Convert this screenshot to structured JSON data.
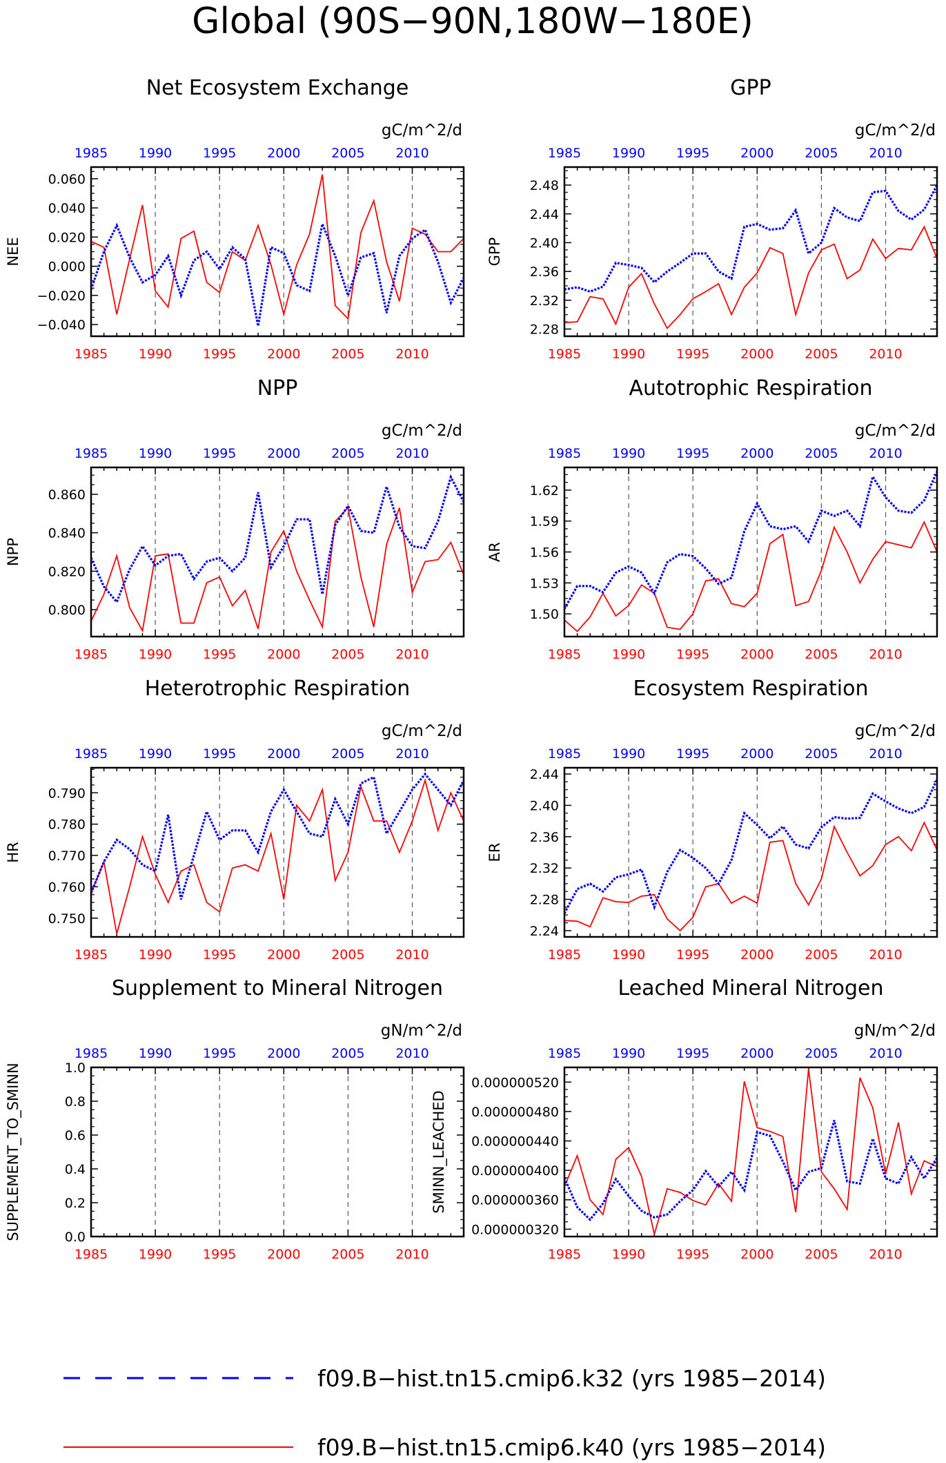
{
  "figure": {
    "title": "Global (90S−90N,180W−180E)",
    "colors": {
      "case_a": "#0000ff",
      "case_b": "#ff0000",
      "axis": "#000000",
      "grid": "#555555"
    }
  },
  "legend": {
    "entries": [
      {
        "label": "f09.B−hist.tn15.cmip6.k32 (yrs 1985−2014)",
        "color": "#0000ff",
        "style": "dashed"
      },
      {
        "label": "f09.B−hist.tn15.cmip6.k40 (yrs 1985−2014)",
        "color": "#ff0000",
        "style": "solid"
      }
    ]
  },
  "chart_data": [
    {
      "type": "line",
      "title": "Net Ecosystem Exchange",
      "ylabel": "NEE",
      "units": "gC/m^2/d",
      "ylim": [
        -0.048,
        0.068
      ],
      "yticks": [
        -0.04,
        -0.02,
        0.0,
        0.02,
        0.04,
        0.06
      ],
      "ytick_labels": [
        "−0.040",
        "−0.020",
        "0.000",
        "0.020",
        "0.040",
        "0.060"
      ],
      "x_bottom_ticks": [
        "1985",
        "1990",
        "1995",
        "2000",
        "2005",
        "2010"
      ],
      "x_top_ticks": [
        "1985",
        "1990",
        "1995",
        "2000",
        "2005",
        "2010"
      ],
      "x_top_color": "#0000ff",
      "x_bottom_color": "#ff0000",
      "years": [
        1985,
        1986,
        1987,
        1988,
        1989,
        1990,
        1991,
        1992,
        1993,
        1994,
        1995,
        1996,
        1997,
        1998,
        1999,
        2000,
        2001,
        2002,
        2003,
        2004,
        2005,
        2006,
        2007,
        2008,
        2009,
        2010,
        2011,
        2012,
        2013,
        2014
      ],
      "series": [
        {
          "color": "#0000ff",
          "style": "dotted",
          "values": [
            -0.016,
            0.01,
            0.028,
            0.006,
            -0.011,
            -0.006,
            0.007,
            -0.02,
            0.004,
            0.01,
            -0.002,
            0.013,
            0.005,
            -0.041,
            0.013,
            0.009,
            -0.013,
            -0.017,
            0.029,
            0.007,
            -0.02,
            0.006,
            0.009,
            -0.032,
            0.007,
            0.019,
            0.025,
            0.003,
            -0.025,
            -0.008
          ]
        },
        {
          "color": "#ff0000",
          "style": "solid",
          "values": [
            0.017,
            0.013,
            -0.033,
            0.005,
            0.042,
            -0.017,
            -0.028,
            0.019,
            0.024,
            -0.011,
            -0.018,
            0.01,
            0.004,
            0.028,
            0.001,
            -0.033,
            0.001,
            0.022,
            0.063,
            -0.027,
            -0.036,
            0.023,
            0.045,
            0.003,
            -0.024,
            0.026,
            0.022,
            0.01,
            0.01,
            0.019
          ]
        }
      ]
    },
    {
      "type": "line",
      "title": "GPP",
      "ylabel": "GPP",
      "units": "gC/m^2/d",
      "ylim": [
        2.27,
        2.505
      ],
      "yticks": [
        2.28,
        2.32,
        2.36,
        2.4,
        2.44,
        2.48
      ],
      "ytick_labels": [
        "2.28",
        "2.32",
        "2.36",
        "2.40",
        "2.44",
        "2.48"
      ],
      "x_bottom_ticks": [
        "1985",
        "1990",
        "1995",
        "2000",
        "2005",
        "2010"
      ],
      "x_top_ticks": [
        "1985",
        "1990",
        "1995",
        "2000",
        "2005",
        "2010"
      ],
      "x_top_color": "#0000ff",
      "x_bottom_color": "#ff0000",
      "years": [
        1985,
        1986,
        1987,
        1988,
        1989,
        1990,
        1991,
        1992,
        1993,
        1994,
        1995,
        1996,
        1997,
        1998,
        1999,
        2000,
        2001,
        2002,
        2003,
        2004,
        2005,
        2006,
        2007,
        2008,
        2009,
        2010,
        2011,
        2012,
        2013,
        2014
      ],
      "series": [
        {
          "color": "#0000ff",
          "style": "dotted",
          "values": [
            2.335,
            2.338,
            2.332,
            2.339,
            2.372,
            2.369,
            2.365,
            2.345,
            2.36,
            2.372,
            2.385,
            2.385,
            2.36,
            2.35,
            2.422,
            2.426,
            2.418,
            2.42,
            2.445,
            2.385,
            2.4,
            2.448,
            2.435,
            2.43,
            2.47,
            2.472,
            2.444,
            2.432,
            2.446,
            2.48
          ]
        },
        {
          "color": "#ff0000",
          "style": "solid",
          "values": [
            2.289,
            2.29,
            2.325,
            2.322,
            2.287,
            2.338,
            2.357,
            2.315,
            2.281,
            2.3,
            2.322,
            2.332,
            2.343,
            2.3,
            2.338,
            2.358,
            2.393,
            2.385,
            2.3,
            2.358,
            2.39,
            2.398,
            2.35,
            2.362,
            2.405,
            2.378,
            2.392,
            2.39,
            2.422,
            2.378
          ]
        }
      ]
    },
    {
      "type": "line",
      "title": "NPP",
      "ylabel": "NPP",
      "units": "gC/m^2/d",
      "ylim": [
        0.786,
        0.874
      ],
      "yticks": [
        0.8,
        0.82,
        0.84,
        0.86
      ],
      "ytick_labels": [
        "0.800",
        "0.820",
        "0.840",
        "0.860"
      ],
      "x_bottom_ticks": [
        "1985",
        "1990",
        "1995",
        "2000",
        "2005",
        "2010"
      ],
      "x_top_ticks": [
        "1985",
        "1990",
        "1995",
        "2000",
        "2005",
        "2010"
      ],
      "x_top_color": "#0000ff",
      "x_bottom_color": "#ff0000",
      "years": [
        1985,
        1986,
        1987,
        1988,
        1989,
        1990,
        1991,
        1992,
        1993,
        1994,
        1995,
        1996,
        1997,
        1998,
        1999,
        2000,
        2001,
        2002,
        2003,
        2004,
        2005,
        2006,
        2007,
        2008,
        2009,
        2010,
        2011,
        2012,
        2013,
        2014
      ],
      "series": [
        {
          "color": "#0000ff",
          "style": "dotted",
          "values": [
            0.827,
            0.812,
            0.804,
            0.821,
            0.833,
            0.823,
            0.828,
            0.829,
            0.816,
            0.825,
            0.827,
            0.82,
            0.827,
            0.861,
            0.822,
            0.833,
            0.847,
            0.847,
            0.808,
            0.844,
            0.854,
            0.841,
            0.84,
            0.864,
            0.843,
            0.833,
            0.832,
            0.846,
            0.869,
            0.856
          ]
        },
        {
          "color": "#ff0000",
          "style": "solid",
          "values": [
            0.794,
            0.808,
            0.828,
            0.801,
            0.789,
            0.828,
            0.829,
            0.793,
            0.793,
            0.814,
            0.817,
            0.802,
            0.81,
            0.79,
            0.83,
            0.841,
            0.82,
            0.805,
            0.791,
            0.846,
            0.853,
            0.817,
            0.791,
            0.834,
            0.853,
            0.809,
            0.825,
            0.826,
            0.835,
            0.818
          ]
        }
      ]
    },
    {
      "type": "line",
      "title": "Autotrophic Respiration",
      "ylabel": "AR",
      "units": "gC/m^2/d",
      "ylim": [
        1.478,
        1.642
      ],
      "yticks": [
        1.5,
        1.53,
        1.56,
        1.59,
        1.62
      ],
      "ytick_labels": [
        "1.50",
        "1.53",
        "1.56",
        "1.59",
        "1.62"
      ],
      "x_bottom_ticks": [
        "1985",
        "1990",
        "1995",
        "2000",
        "2005",
        "2010"
      ],
      "x_top_ticks": [
        "1985",
        "1990",
        "1995",
        "2000",
        "2005",
        "2010"
      ],
      "x_top_color": "#0000ff",
      "x_bottom_color": "#ff0000",
      "years": [
        1985,
        1986,
        1987,
        1988,
        1989,
        1990,
        1991,
        1992,
        1993,
        1994,
        1995,
        1996,
        1997,
        1998,
        1999,
        2000,
        2001,
        2002,
        2003,
        2004,
        2005,
        2006,
        2007,
        2008,
        2009,
        2010,
        2011,
        2012,
        2013,
        2014
      ],
      "series": [
        {
          "color": "#0000ff",
          "style": "dotted",
          "values": [
            1.505,
            1.527,
            1.527,
            1.521,
            1.54,
            1.546,
            1.54,
            1.52,
            1.55,
            1.558,
            1.556,
            1.544,
            1.529,
            1.535,
            1.58,
            1.607,
            1.585,
            1.582,
            1.585,
            1.57,
            1.6,
            1.595,
            1.6,
            1.585,
            1.633,
            1.613,
            1.6,
            1.598,
            1.61,
            1.638
          ]
        },
        {
          "color": "#ff0000",
          "style": "solid",
          "values": [
            1.494,
            1.483,
            1.497,
            1.52,
            1.498,
            1.508,
            1.528,
            1.52,
            1.487,
            1.485,
            1.5,
            1.532,
            1.534,
            1.51,
            1.507,
            1.52,
            1.568,
            1.577,
            1.508,
            1.512,
            1.542,
            1.584,
            1.56,
            1.53,
            1.553,
            1.57,
            1.567,
            1.564,
            1.589,
            1.56
          ]
        }
      ]
    },
    {
      "type": "line",
      "title": "Heterotrophic Respiration",
      "ylabel": "HR",
      "units": "gC/m^2/d",
      "ylim": [
        0.744,
        0.798
      ],
      "yticks": [
        0.75,
        0.76,
        0.77,
        0.78,
        0.79
      ],
      "ytick_labels": [
        "0.750",
        "0.760",
        "0.770",
        "0.780",
        "0.790"
      ],
      "x_bottom_ticks": [
        "1985",
        "1990",
        "1995",
        "2000",
        "2005",
        "2010"
      ],
      "x_top_ticks": [
        "1985",
        "1990",
        "1995",
        "2000",
        "2005",
        "2010"
      ],
      "x_top_color": "#0000ff",
      "x_bottom_color": "#ff0000",
      "years": [
        1985,
        1986,
        1987,
        1988,
        1989,
        1990,
        1991,
        1992,
        1993,
        1994,
        1995,
        1996,
        1997,
        1998,
        1999,
        2000,
        2001,
        2002,
        2003,
        2004,
        2005,
        2006,
        2007,
        2008,
        2009,
        2010,
        2011,
        2012,
        2013,
        2014
      ],
      "series": [
        {
          "color": "#0000ff",
          "style": "dotted",
          "values": [
            0.758,
            0.768,
            0.775,
            0.772,
            0.767,
            0.765,
            0.783,
            0.756,
            0.77,
            0.784,
            0.775,
            0.778,
            0.778,
            0.771,
            0.784,
            0.791,
            0.784,
            0.777,
            0.776,
            0.788,
            0.78,
            0.793,
            0.795,
            0.777,
            0.784,
            0.791,
            0.796,
            0.791,
            0.786,
            0.794
          ]
        },
        {
          "color": "#ff0000",
          "style": "solid",
          "values": [
            0.758,
            0.768,
            0.745,
            0.76,
            0.776,
            0.764,
            0.755,
            0.765,
            0.767,
            0.755,
            0.752,
            0.766,
            0.767,
            0.765,
            0.777,
            0.756,
            0.786,
            0.781,
            0.791,
            0.762,
            0.771,
            0.792,
            0.781,
            0.781,
            0.771,
            0.781,
            0.794,
            0.778,
            0.79,
            0.781
          ]
        }
      ]
    },
    {
      "type": "line",
      "title": "Ecosystem Respiration",
      "ylabel": "ER",
      "units": "gC/m^2/d",
      "ylim": [
        2.232,
        2.448
      ],
      "yticks": [
        2.24,
        2.28,
        2.32,
        2.36,
        2.4,
        2.44
      ],
      "ytick_labels": [
        "2.24",
        "2.28",
        "2.32",
        "2.36",
        "2.40",
        "2.44"
      ],
      "x_bottom_ticks": [
        "1985",
        "1990",
        "1995",
        "2000",
        "2005",
        "2010"
      ],
      "x_top_ticks": [
        "1985",
        "1990",
        "1995",
        "2000",
        "2005",
        "2010"
      ],
      "x_top_color": "#0000ff",
      "x_bottom_color": "#ff0000",
      "years": [
        1985,
        1986,
        1987,
        1988,
        1989,
        1990,
        1991,
        1992,
        1993,
        1994,
        1995,
        1996,
        1997,
        1998,
        1999,
        2000,
        2001,
        2002,
        2003,
        2004,
        2005,
        2006,
        2007,
        2008,
        2009,
        2010,
        2011,
        2012,
        2013,
        2014
      ],
      "series": [
        {
          "color": "#0000ff",
          "style": "dotted",
          "values": [
            2.262,
            2.293,
            2.3,
            2.29,
            2.308,
            2.312,
            2.318,
            2.27,
            2.315,
            2.343,
            2.333,
            2.32,
            2.3,
            2.33,
            2.39,
            2.375,
            2.358,
            2.373,
            2.35,
            2.345,
            2.372,
            2.385,
            2.383,
            2.384,
            2.415,
            2.405,
            2.396,
            2.39,
            2.398,
            2.433
          ]
        },
        {
          "color": "#ff0000",
          "style": "solid",
          "values": [
            2.253,
            2.252,
            2.245,
            2.282,
            2.277,
            2.276,
            2.284,
            2.286,
            2.255,
            2.24,
            2.257,
            2.296,
            2.3,
            2.275,
            2.284,
            2.275,
            2.353,
            2.355,
            2.3,
            2.273,
            2.306,
            2.373,
            2.34,
            2.31,
            2.323,
            2.35,
            2.36,
            2.342,
            2.378,
            2.343
          ]
        }
      ]
    },
    {
      "type": "line",
      "title": "Supplement to Mineral Nitrogen",
      "ylabel": "SUPPLEMENT_TO_SMINN",
      "units": "gN/m^2/d",
      "ylim": [
        0.0,
        1.0
      ],
      "yticks": [
        0.0,
        0.2,
        0.4,
        0.6,
        0.8,
        1.0
      ],
      "ytick_labels": [
        "0.0",
        "0.2",
        "0.4",
        "0.6",
        "0.8",
        "1.0"
      ],
      "x_bottom_ticks": [
        "1985",
        "1990",
        "1995",
        "2000",
        "2005",
        "2010"
      ],
      "x_top_ticks": [
        "1985",
        "1990",
        "1995",
        "2000",
        "2005",
        "2010"
      ],
      "x_top_color": "#0000ff",
      "x_bottom_color": "#ff0000",
      "years": [],
      "series": []
    },
    {
      "type": "line",
      "title": "Leached Mineral Nitrogen",
      "ylabel": "SMINN_LEACHED",
      "units": "gN/m^2/d",
      "ylim": [
        3.1e-07,
        5.4e-07
      ],
      "yticks": [
        3.2e-07,
        3.6e-07,
        4e-07,
        4.4e-07,
        4.8e-07,
        5.2e-07
      ],
      "ytick_labels": [
        "0.000000320",
        "0.000000360",
        "0.000000400",
        "0.000000440",
        "0.000000480",
        "0.000000520"
      ],
      "x_bottom_ticks": [
        "1985",
        "1990",
        "1995",
        "2000",
        "2005",
        "2010"
      ],
      "x_top_ticks": [
        "1985",
        "1990",
        "1995",
        "2000",
        "2005",
        "2010"
      ],
      "x_top_color": "#0000ff",
      "x_bottom_color": "#ff0000",
      "years": [
        1985,
        1986,
        1987,
        1988,
        1989,
        1990,
        1991,
        1992,
        1993,
        1994,
        1995,
        1996,
        1997,
        1998,
        1999,
        2000,
        2001,
        2002,
        2003,
        2004,
        2005,
        2006,
        2007,
        2008,
        2009,
        2010,
        2011,
        2012,
        2013,
        2014
      ],
      "series": [
        {
          "color": "#0000ff",
          "style": "dotted",
          "values": [
            3.9e-07,
            3.5e-07,
            3.33e-07,
            3.55e-07,
            3.88e-07,
            3.65e-07,
            3.45e-07,
            3.36e-07,
            3.4e-07,
            3.58e-07,
            3.73e-07,
            3.99e-07,
            3.78e-07,
            3.98e-07,
            3.73e-07,
            4.52e-07,
            4.47e-07,
            4.12e-07,
            3.73e-07,
            3.98e-07,
            4.03e-07,
            4.68e-07,
            3.85e-07,
            3.82e-07,
            4.43e-07,
            3.89e-07,
            3.82e-07,
            4.18e-07,
            3.89e-07,
            4.17e-07
          ]
        },
        {
          "color": "#ff0000",
          "style": "solid",
          "values": [
            3.78e-07,
            4.2e-07,
            3.6e-07,
            3.4e-07,
            4.15e-07,
            4.31e-07,
            3.92e-07,
            3.13e-07,
            3.75e-07,
            3.7e-07,
            3.59e-07,
            3.53e-07,
            3.82e-07,
            3.58e-07,
            5.21e-07,
            4.58e-07,
            4.53e-07,
            4.46e-07,
            3.43e-07,
            5.38e-07,
            3.98e-07,
            3.75e-07,
            3.47e-07,
            5.26e-07,
            4.85e-07,
            3.95e-07,
            4.65e-07,
            3.68e-07,
            4.13e-07,
            4.05e-07
          ]
        }
      ]
    }
  ]
}
